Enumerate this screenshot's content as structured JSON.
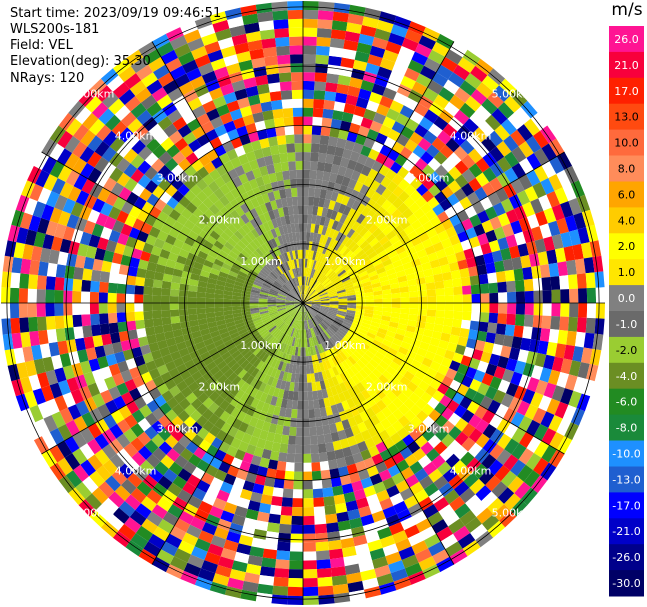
{
  "header": {
    "start_time": "Start time: 2023/09/19 09:46:51",
    "instrument": "WLS200s-181",
    "field": "Field: VEL",
    "elevation": "Elevation(deg): 35.30",
    "nrays": "NRays: 120"
  },
  "colorbar": {
    "unit": "m/s",
    "levels": [
      "26.0",
      "21.0",
      "17.0",
      "13.0",
      "10.0",
      "8.0",
      "6.0",
      "4.0",
      "2.0",
      "1.0",
      "0.0",
      "-1.0",
      "-2.0",
      "-4.0",
      "-6.0",
      "-8.0",
      "-10.0",
      "-13.0",
      "-17.0",
      "-21.0",
      "-26.0",
      "-30.0"
    ],
    "colors": [
      "#ff1493",
      "#f8003c",
      "#ff2000",
      "#ff4a10",
      "#ff6a3c",
      "#ff8c5a",
      "#ffa500",
      "#ffcc00",
      "#ffff00",
      "#ffe600",
      "#808080",
      "#6a6a6a",
      "#9acd32",
      "#6b8e23",
      "#228b22",
      "#1a8a3a",
      "#1e90ff",
      "#1f5fd0",
      "#0000ff",
      "#0000c8",
      "#00008b",
      "#000066"
    ]
  },
  "chart_data": {
    "type": "ppi",
    "field": "VEL",
    "units": "m/s",
    "nrays": 120,
    "elevation_deg": 35.3,
    "range_ring_labels": [
      "1.00km",
      "2.00km",
      "3.00km",
      "4.00km",
      "5.00km"
    ],
    "range_rings_km": [
      1,
      2,
      3,
      4,
      5
    ],
    "max_range_km": 5.1,
    "valid_range_km": 2.8,
    "pattern": "velocity dipole: positive (yellow) to the east, negative (green) to the west; noise beyond ~2.8 km"
  }
}
